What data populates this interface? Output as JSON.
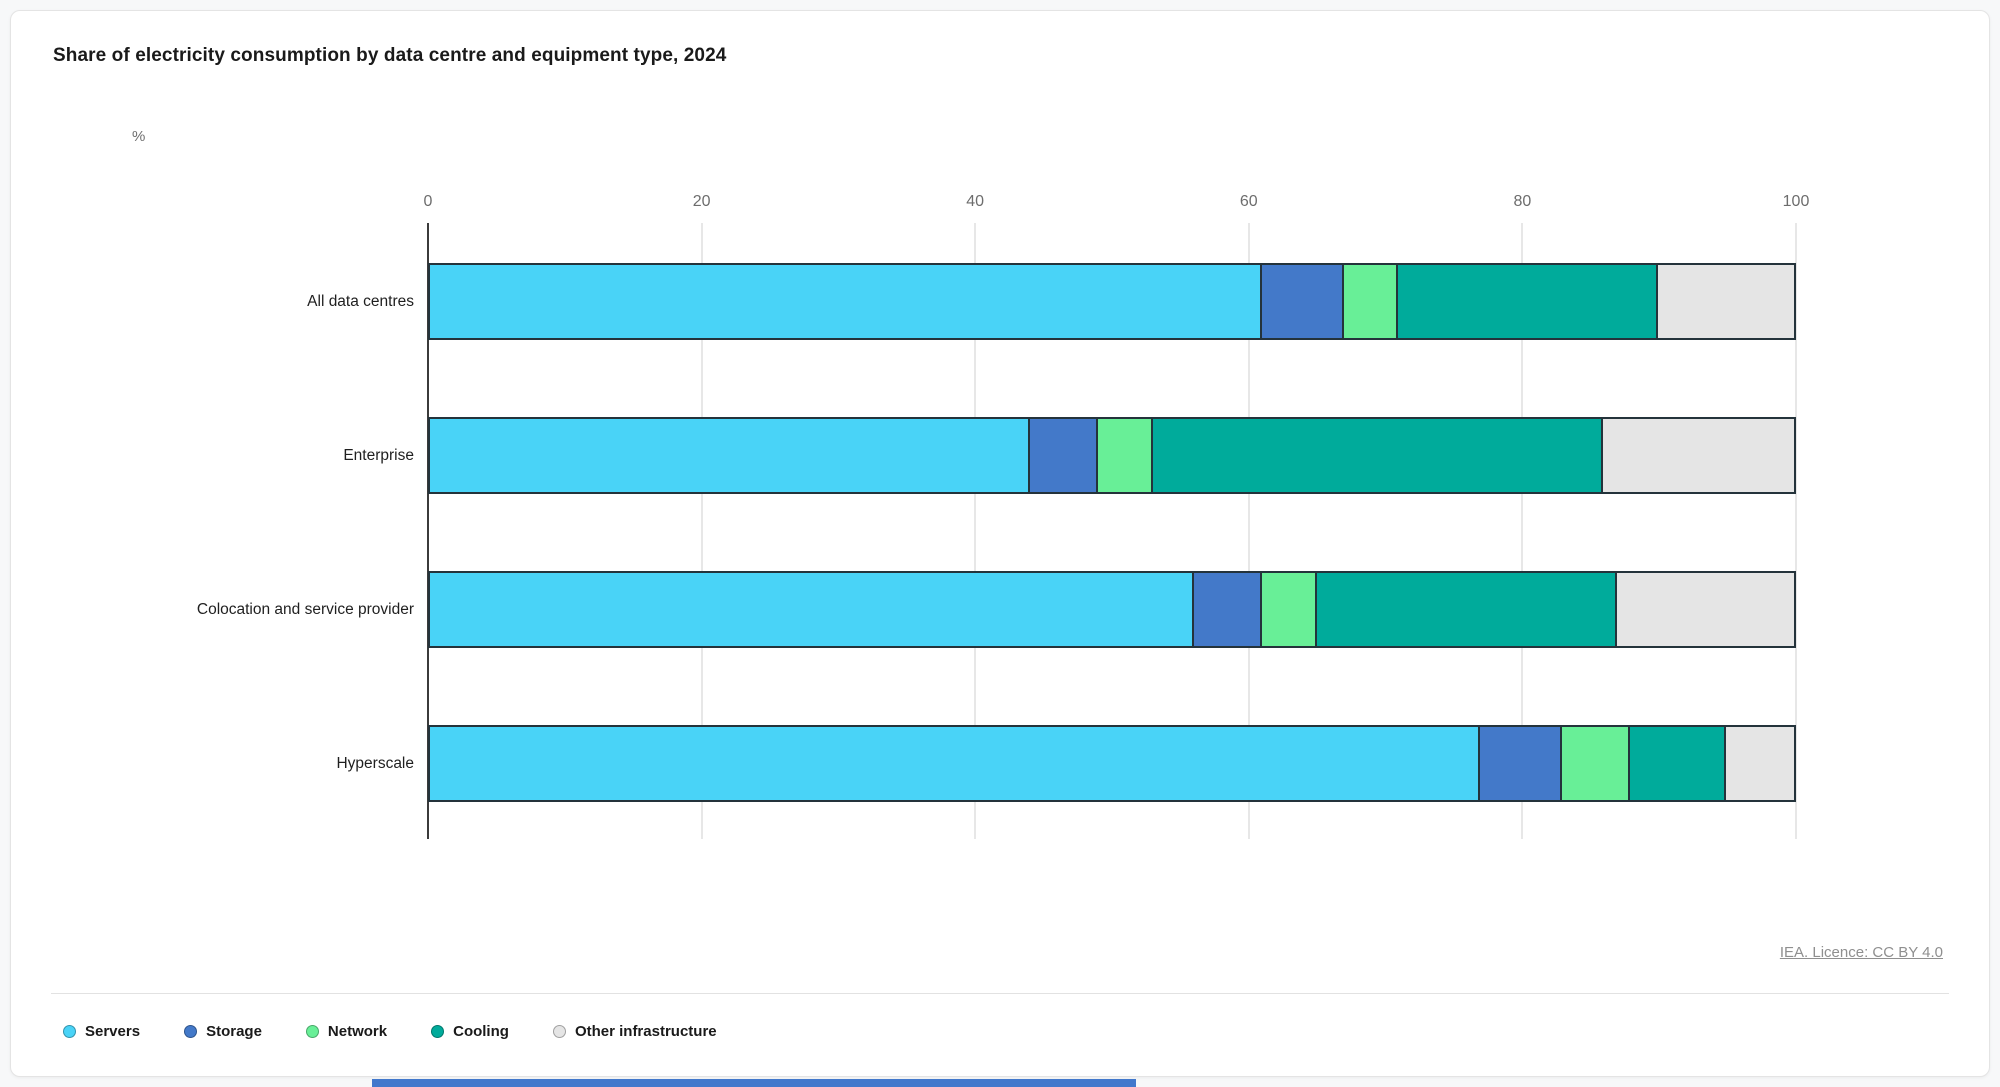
{
  "title": "Share of electricity consumption by data centre and equipment type, 2024",
  "axis_unit_label": "%",
  "source_link_text": "IEA. Licence: CC BY 4.0",
  "page": {
    "footer_strip_color": "#4278CC"
  },
  "chart_data": {
    "type": "bar",
    "orientation": "horizontal",
    "stacked": true,
    "unit": "%",
    "title": "Share of electricity consumption by data centre and equipment type, 2024",
    "categories": [
      "All data centres",
      "Enterprise",
      "Colocation and service provider",
      "Hyperscale"
    ],
    "series": [
      {
        "name": "Servers",
        "color": "#49D3F7",
        "values": [
          61,
          44,
          56,
          77
        ]
      },
      {
        "name": "Storage",
        "color": "#4379C9",
        "values": [
          6,
          5,
          5,
          6
        ]
      },
      {
        "name": "Network",
        "color": "#68EF97",
        "values": [
          4,
          4,
          4,
          5
        ]
      },
      {
        "name": "Cooling",
        "color": "#00AB9B",
        "values": [
          19,
          33,
          22,
          7
        ]
      },
      {
        "name": "Other infrastructure",
        "color": "#E5E5E5",
        "values": [
          10,
          14,
          13,
          5
        ]
      }
    ],
    "x_axis": {
      "min": 0,
      "max": 100,
      "ticks": [
        0,
        20,
        40,
        60,
        80,
        100
      ]
    },
    "grid": true,
    "legend_position": "bottom",
    "segment_outline_color": "#24333B",
    "source": "IEA. Licence: CC BY 4.0"
  }
}
